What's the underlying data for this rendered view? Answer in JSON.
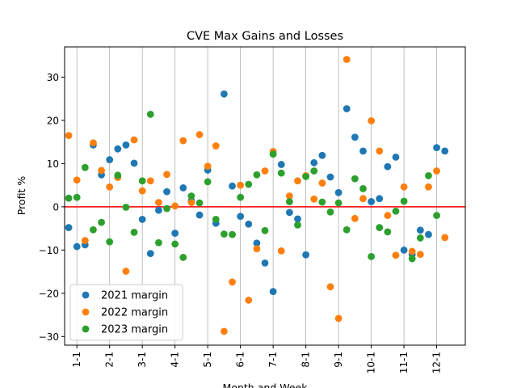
{
  "chart_data": {
    "type": "scatter",
    "title": "CVE Max Gains and Losses",
    "xlabel": "Month and Week",
    "ylabel": "Profit %",
    "ylim": [
      -32,
      37
    ],
    "yticks": [
      -30,
      -20,
      -10,
      0,
      10,
      20,
      30
    ],
    "xlim": [
      -0.5,
      48.5
    ],
    "xtick_labels": [
      "1-1",
      "2-1",
      "3-1",
      "4-1",
      "5-1",
      "6-1",
      "7-1",
      "8-1",
      "9-1",
      "10-1",
      "11-1",
      "12-1",
      ""
    ],
    "xtick_positions": [
      1,
      5,
      9,
      13,
      17,
      21,
      25,
      29,
      33,
      37,
      41,
      45,
      49
    ],
    "grid": "vertical at month ticks",
    "zero_line": {
      "y": 0,
      "color": "#ff0000"
    },
    "legend_position": "lower-left",
    "colors": {
      "2021 margin": "#1f77b4",
      "2022 margin": "#ff7f0e",
      "2023 margin": "#2ca02c"
    },
    "series": [
      {
        "name": "2021 margin",
        "color": "#1f77b4",
        "x": [
          0,
          1,
          2,
          3,
          4,
          5,
          6,
          7,
          8,
          9,
          10,
          11,
          12,
          13,
          14,
          15,
          16,
          17,
          18,
          19,
          20,
          21,
          22,
          23,
          24,
          25,
          26,
          27,
          28,
          29,
          30,
          31,
          32,
          33,
          34,
          35,
          36,
          37,
          38,
          39,
          40,
          41,
          42,
          43,
          44,
          45,
          46,
          47
        ],
        "y": [
          -4.8,
          -9.2,
          -8.8,
          14.3,
          7.4,
          10.9,
          13.4,
          14.3,
          10.1,
          -2.9,
          -10.8,
          -0.8,
          3.5,
          -6.1,
          4.4,
          1.4,
          -1.9,
          8.5,
          -3.8,
          26.1,
          4.8,
          -2.2,
          -4.0,
          -8.4,
          -13.0,
          -19.6,
          9.8,
          -1.3,
          -2.8,
          -11.1,
          10.2,
          11.9,
          6.9,
          3.3,
          22.7,
          16.1,
          12.9,
          1.2,
          1.9,
          9.3,
          11.5,
          -10.0,
          -11.0,
          -5.4,
          -6.4,
          13.7,
          12.9,
          null
        ]
      },
      {
        "name": "2022 margin",
        "color": "#ff7f0e",
        "x": [
          0,
          1,
          2,
          3,
          4,
          5,
          6,
          7,
          8,
          9,
          10,
          11,
          12,
          13,
          14,
          15,
          16,
          17,
          18,
          19,
          20,
          21,
          22,
          23,
          24,
          25,
          26,
          27,
          28,
          29,
          30,
          31,
          32,
          33,
          34,
          35,
          36,
          37,
          38,
          39,
          40,
          41,
          42,
          43,
          44,
          45,
          46,
          47
        ],
        "y": [
          16.5,
          6.2,
          -7.8,
          14.8,
          8.4,
          4.6,
          6.8,
          -14.9,
          15.5,
          3.7,
          6.0,
          1.0,
          7.5,
          0.2,
          15.3,
          1.0,
          16.7,
          9.4,
          14.1,
          -28.8,
          -17.4,
          5.0,
          -21.6,
          -9.7,
          8.3,
          12.8,
          -10.2,
          2.5,
          6.0,
          7.2,
          1.8,
          5.5,
          -18.5,
          -25.8,
          34.1,
          -2.7,
          1.9,
          19.9,
          12.9,
          -2.0,
          -11.2,
          4.6,
          -10.3,
          -11.0,
          4.6,
          8.3,
          -7.1,
          null
        ]
      },
      {
        "name": "2023 margin",
        "color": "#2ca02c",
        "x": [
          0,
          1,
          2,
          3,
          4,
          5,
          6,
          7,
          8,
          9,
          10,
          11,
          12,
          13,
          14,
          15,
          16,
          17,
          18,
          19,
          20,
          21,
          22,
          23,
          24,
          25,
          26,
          27,
          28,
          29,
          30,
          31,
          32,
          33,
          34,
          35,
          36,
          37,
          38,
          39,
          40,
          41,
          42,
          43,
          44,
          45
        ],
        "y": [
          2.0,
          2.2,
          9.1,
          -5.3,
          -3.6,
          -8.1,
          7.3,
          -0.1,
          -5.9,
          6.0,
          21.4,
          -8.3,
          -0.4,
          -8.6,
          -11.7,
          2.5,
          0.9,
          5.8,
          -2.9,
          -6.3,
          -6.4,
          2.2,
          5.2,
          7.4,
          -5.5,
          12.2,
          7.8,
          1.2,
          -4.2,
          7.0,
          8.3,
          1.1,
          -1.2,
          0.9,
          -5.3,
          6.5,
          4.2,
          -11.5,
          -4.8,
          -5.8,
          -1.0,
          1.3,
          -12.0,
          -7.2,
          7.2,
          -2.0
        ]
      }
    ]
  }
}
